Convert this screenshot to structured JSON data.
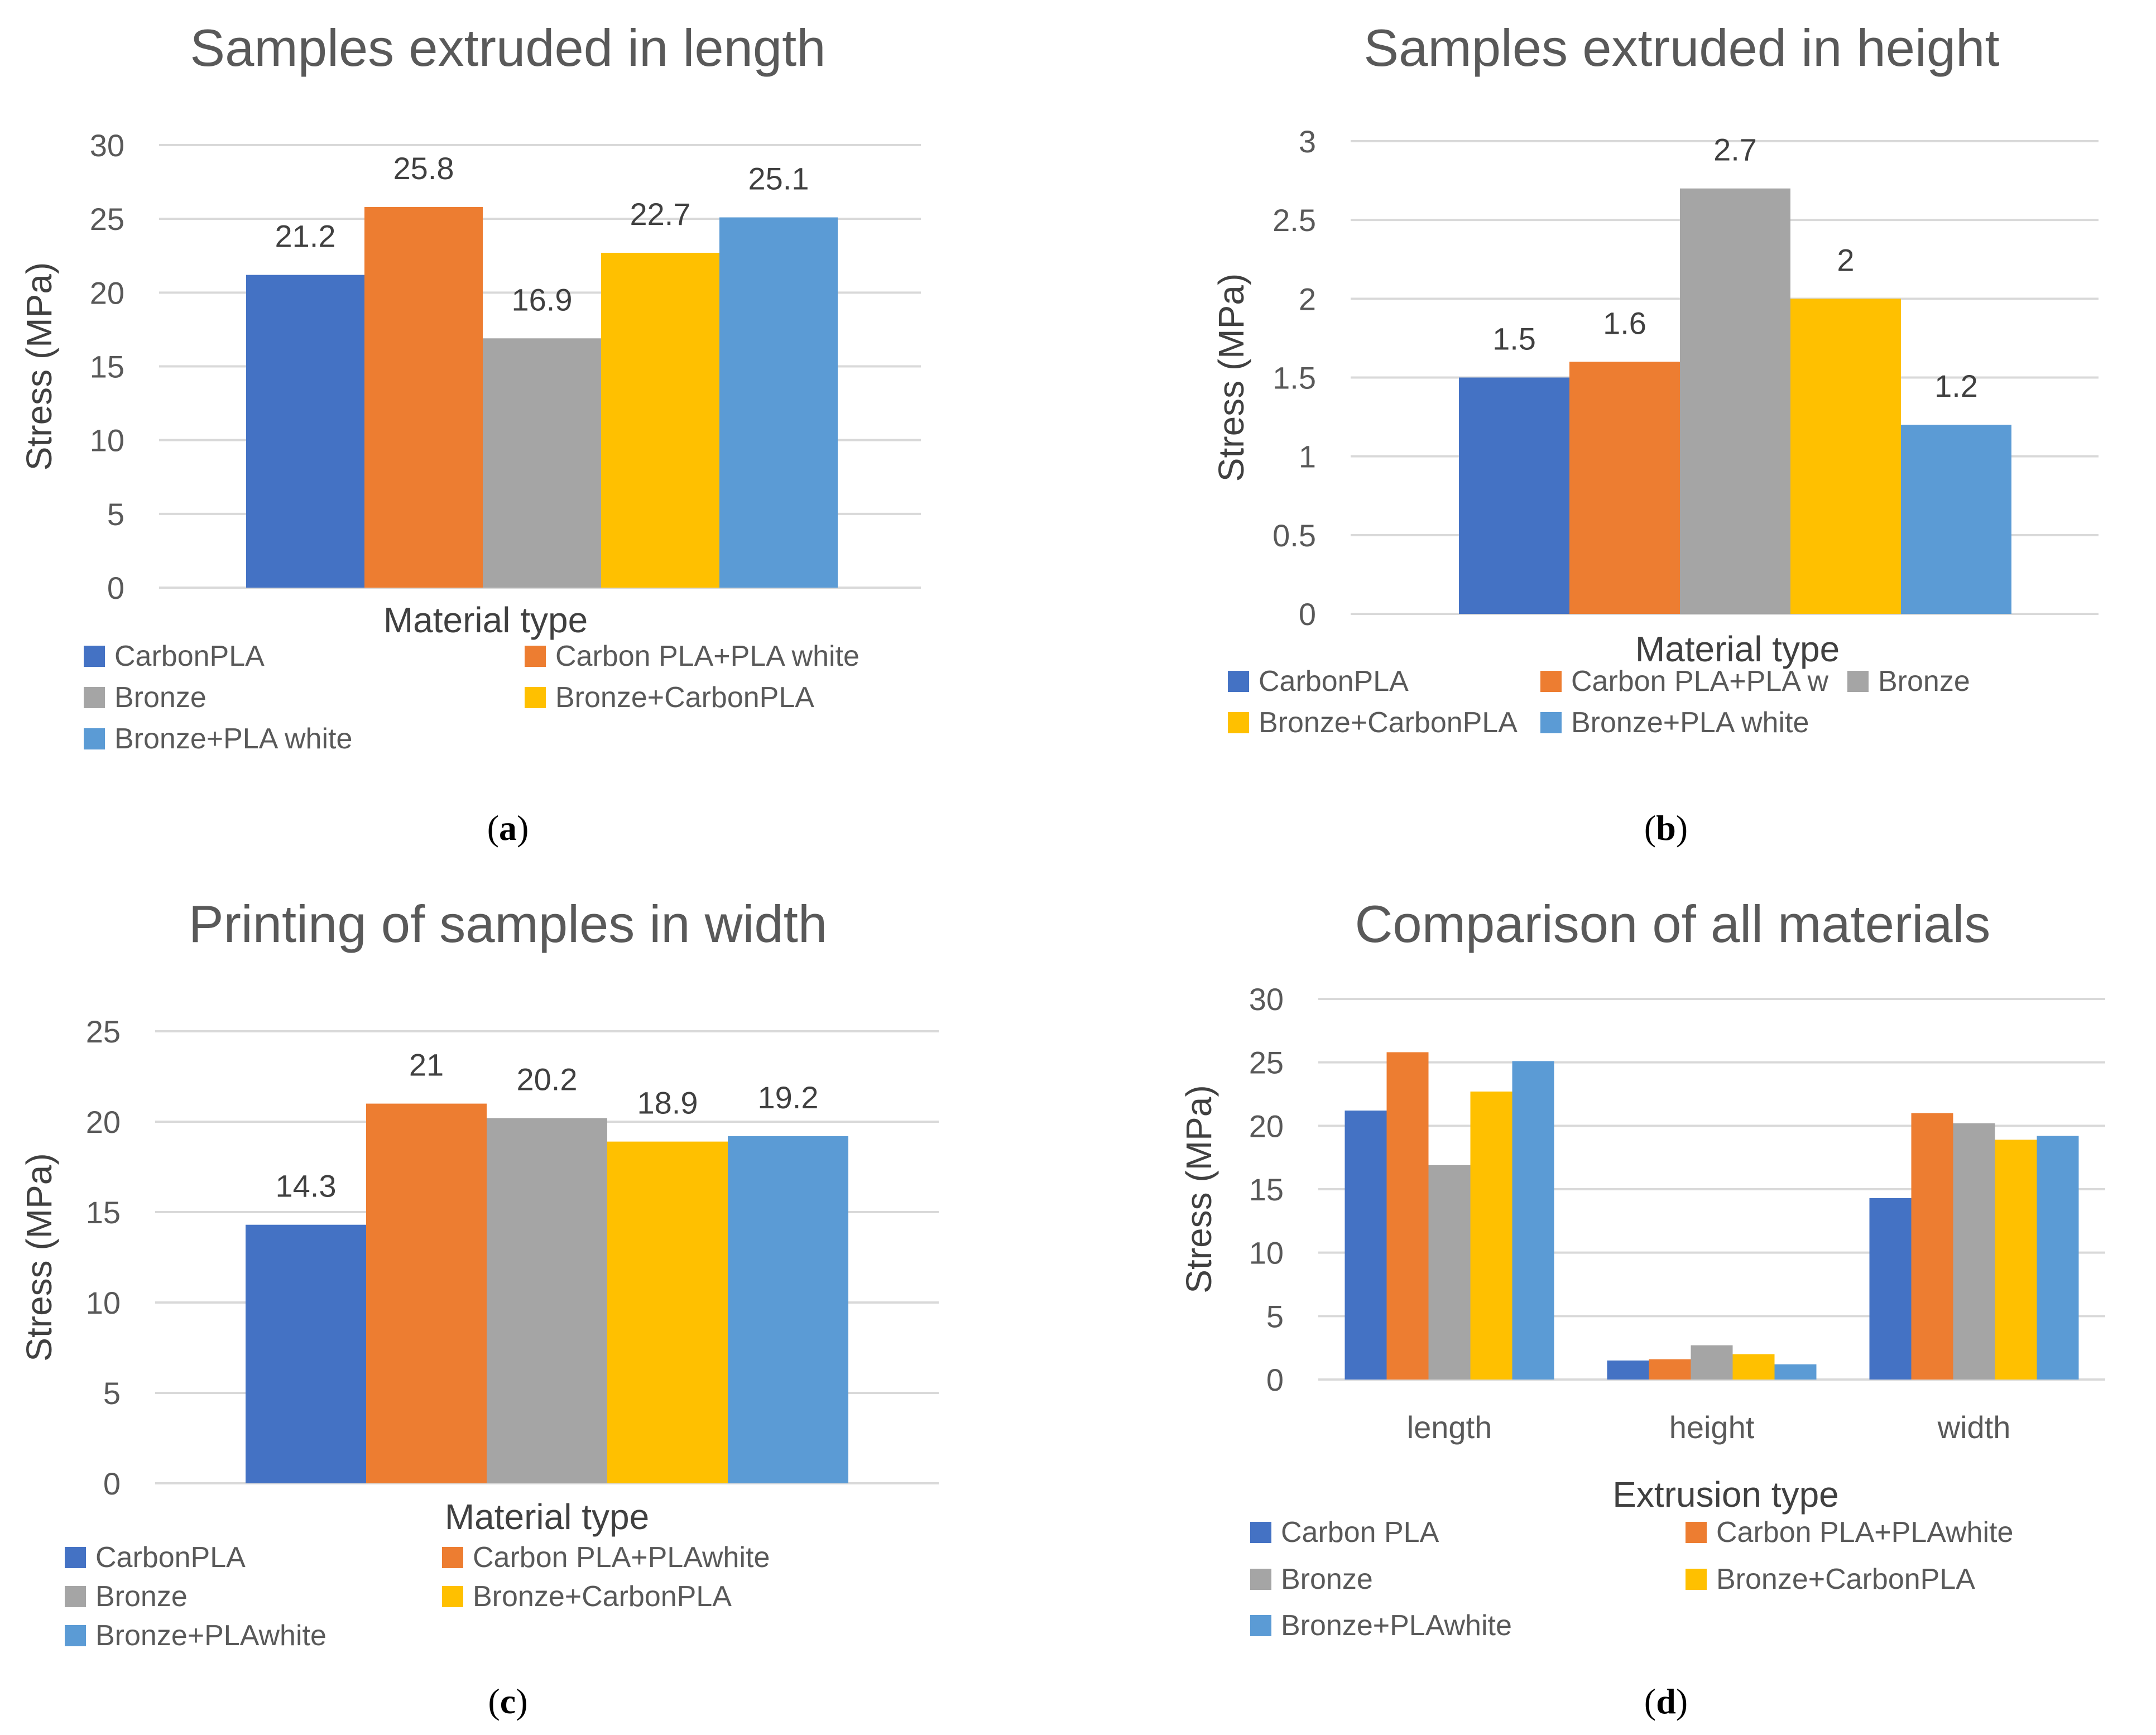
{
  "colors": {
    "carbon_pla": "#4472c4",
    "carbon_pla_white": "#ed7d31",
    "bronze": "#a5a5a5",
    "bronze_carbon": "#ffc000",
    "bronze_white": "#5b9bd5",
    "grid": "#d9d9d9",
    "text": "#595959"
  },
  "chart_data": [
    {
      "id": "a",
      "type": "bar",
      "title": "Samples extruded in length",
      "xlabel": "Material type",
      "ylabel": "Stress (MPa)",
      "ylim": [
        0,
        30
      ],
      "yticks": [
        "0",
        "5",
        "10",
        "15",
        "20",
        "25",
        "30"
      ],
      "grid": true,
      "series": [
        {
          "name": "CarbonPLA",
          "value": 21.2,
          "label": "21.2"
        },
        {
          "name": "Carbon PLA+PLA white",
          "value": 25.8,
          "label": "25.8"
        },
        {
          "name": "Bronze",
          "value": 16.9,
          "label": "16.9"
        },
        {
          "name": "Bronze+CarbonPLA",
          "value": 22.7,
          "label": "22.7"
        },
        {
          "name": "Bronze+PLA white",
          "value": 25.1,
          "label": "25.1"
        }
      ],
      "legend_position": "bottom",
      "caption": "a"
    },
    {
      "id": "b",
      "type": "bar",
      "title": "Samples extruded in height",
      "xlabel": "Material type",
      "ylabel": "Stress (MPa)",
      "ylim": [
        0,
        3
      ],
      "yticks": [
        "0",
        "0.5",
        "1",
        "1.5",
        "2",
        "2.5",
        "3"
      ],
      "grid": true,
      "series": [
        {
          "name": "CarbonPLA",
          "value": 1.5,
          "label": "1.5"
        },
        {
          "name": "Carbon PLA+PLA w",
          "value": 1.6,
          "label": "1.6"
        },
        {
          "name": "Bronze",
          "value": 2.7,
          "label": "2.7"
        },
        {
          "name": "Bronze+CarbonPLA",
          "value": 2.0,
          "label": "2"
        },
        {
          "name": "Bronze+PLA white",
          "value": 1.2,
          "label": "1.2"
        }
      ],
      "legend_position": "bottom",
      "caption": "b"
    },
    {
      "id": "c",
      "type": "bar",
      "title": "Printing of samples in width",
      "xlabel": "Material type",
      "ylabel": "Stress (MPa)",
      "ylim": [
        0,
        25
      ],
      "yticks": [
        "0",
        "5",
        "10",
        "15",
        "20",
        "25"
      ],
      "grid": true,
      "series": [
        {
          "name": "CarbonPLA",
          "value": 14.3,
          "label": "14.3"
        },
        {
          "name": "Carbon PLA+PLAwhite",
          "value": 21.0,
          "label": "21"
        },
        {
          "name": "Bronze",
          "value": 20.2,
          "label": "20.2"
        },
        {
          "name": "Bronze+CarbonPLA",
          "value": 18.9,
          "label": "18.9"
        },
        {
          "name": "Bronze+PLAwhite",
          "value": 19.2,
          "label": "19.2"
        }
      ],
      "legend_position": "bottom",
      "caption": "c"
    },
    {
      "id": "d",
      "type": "bar",
      "title": "Comparison of all materials",
      "xlabel": "Extrusion type",
      "ylabel": "Stress (MPa)",
      "ylim": [
        0,
        30
      ],
      "yticks": [
        "0",
        "5",
        "10",
        "15",
        "20",
        "25",
        "30"
      ],
      "grid": true,
      "categories": [
        "length",
        "height",
        "width"
      ],
      "series": [
        {
          "name": "Carbon PLA",
          "values": [
            21.2,
            1.5,
            14.3
          ]
        },
        {
          "name": "Carbon PLA+PLAwhite",
          "values": [
            25.8,
            1.6,
            21.0
          ]
        },
        {
          "name": "Bronze",
          "values": [
            16.9,
            2.7,
            20.2
          ]
        },
        {
          "name": "Bronze+CarbonPLA",
          "values": [
            22.7,
            2.0,
            18.9
          ]
        },
        {
          "name": "Bronze+PLAwhite",
          "values": [
            25.1,
            1.2,
            19.2
          ]
        }
      ],
      "legend_position": "bottom",
      "caption": "d"
    }
  ]
}
